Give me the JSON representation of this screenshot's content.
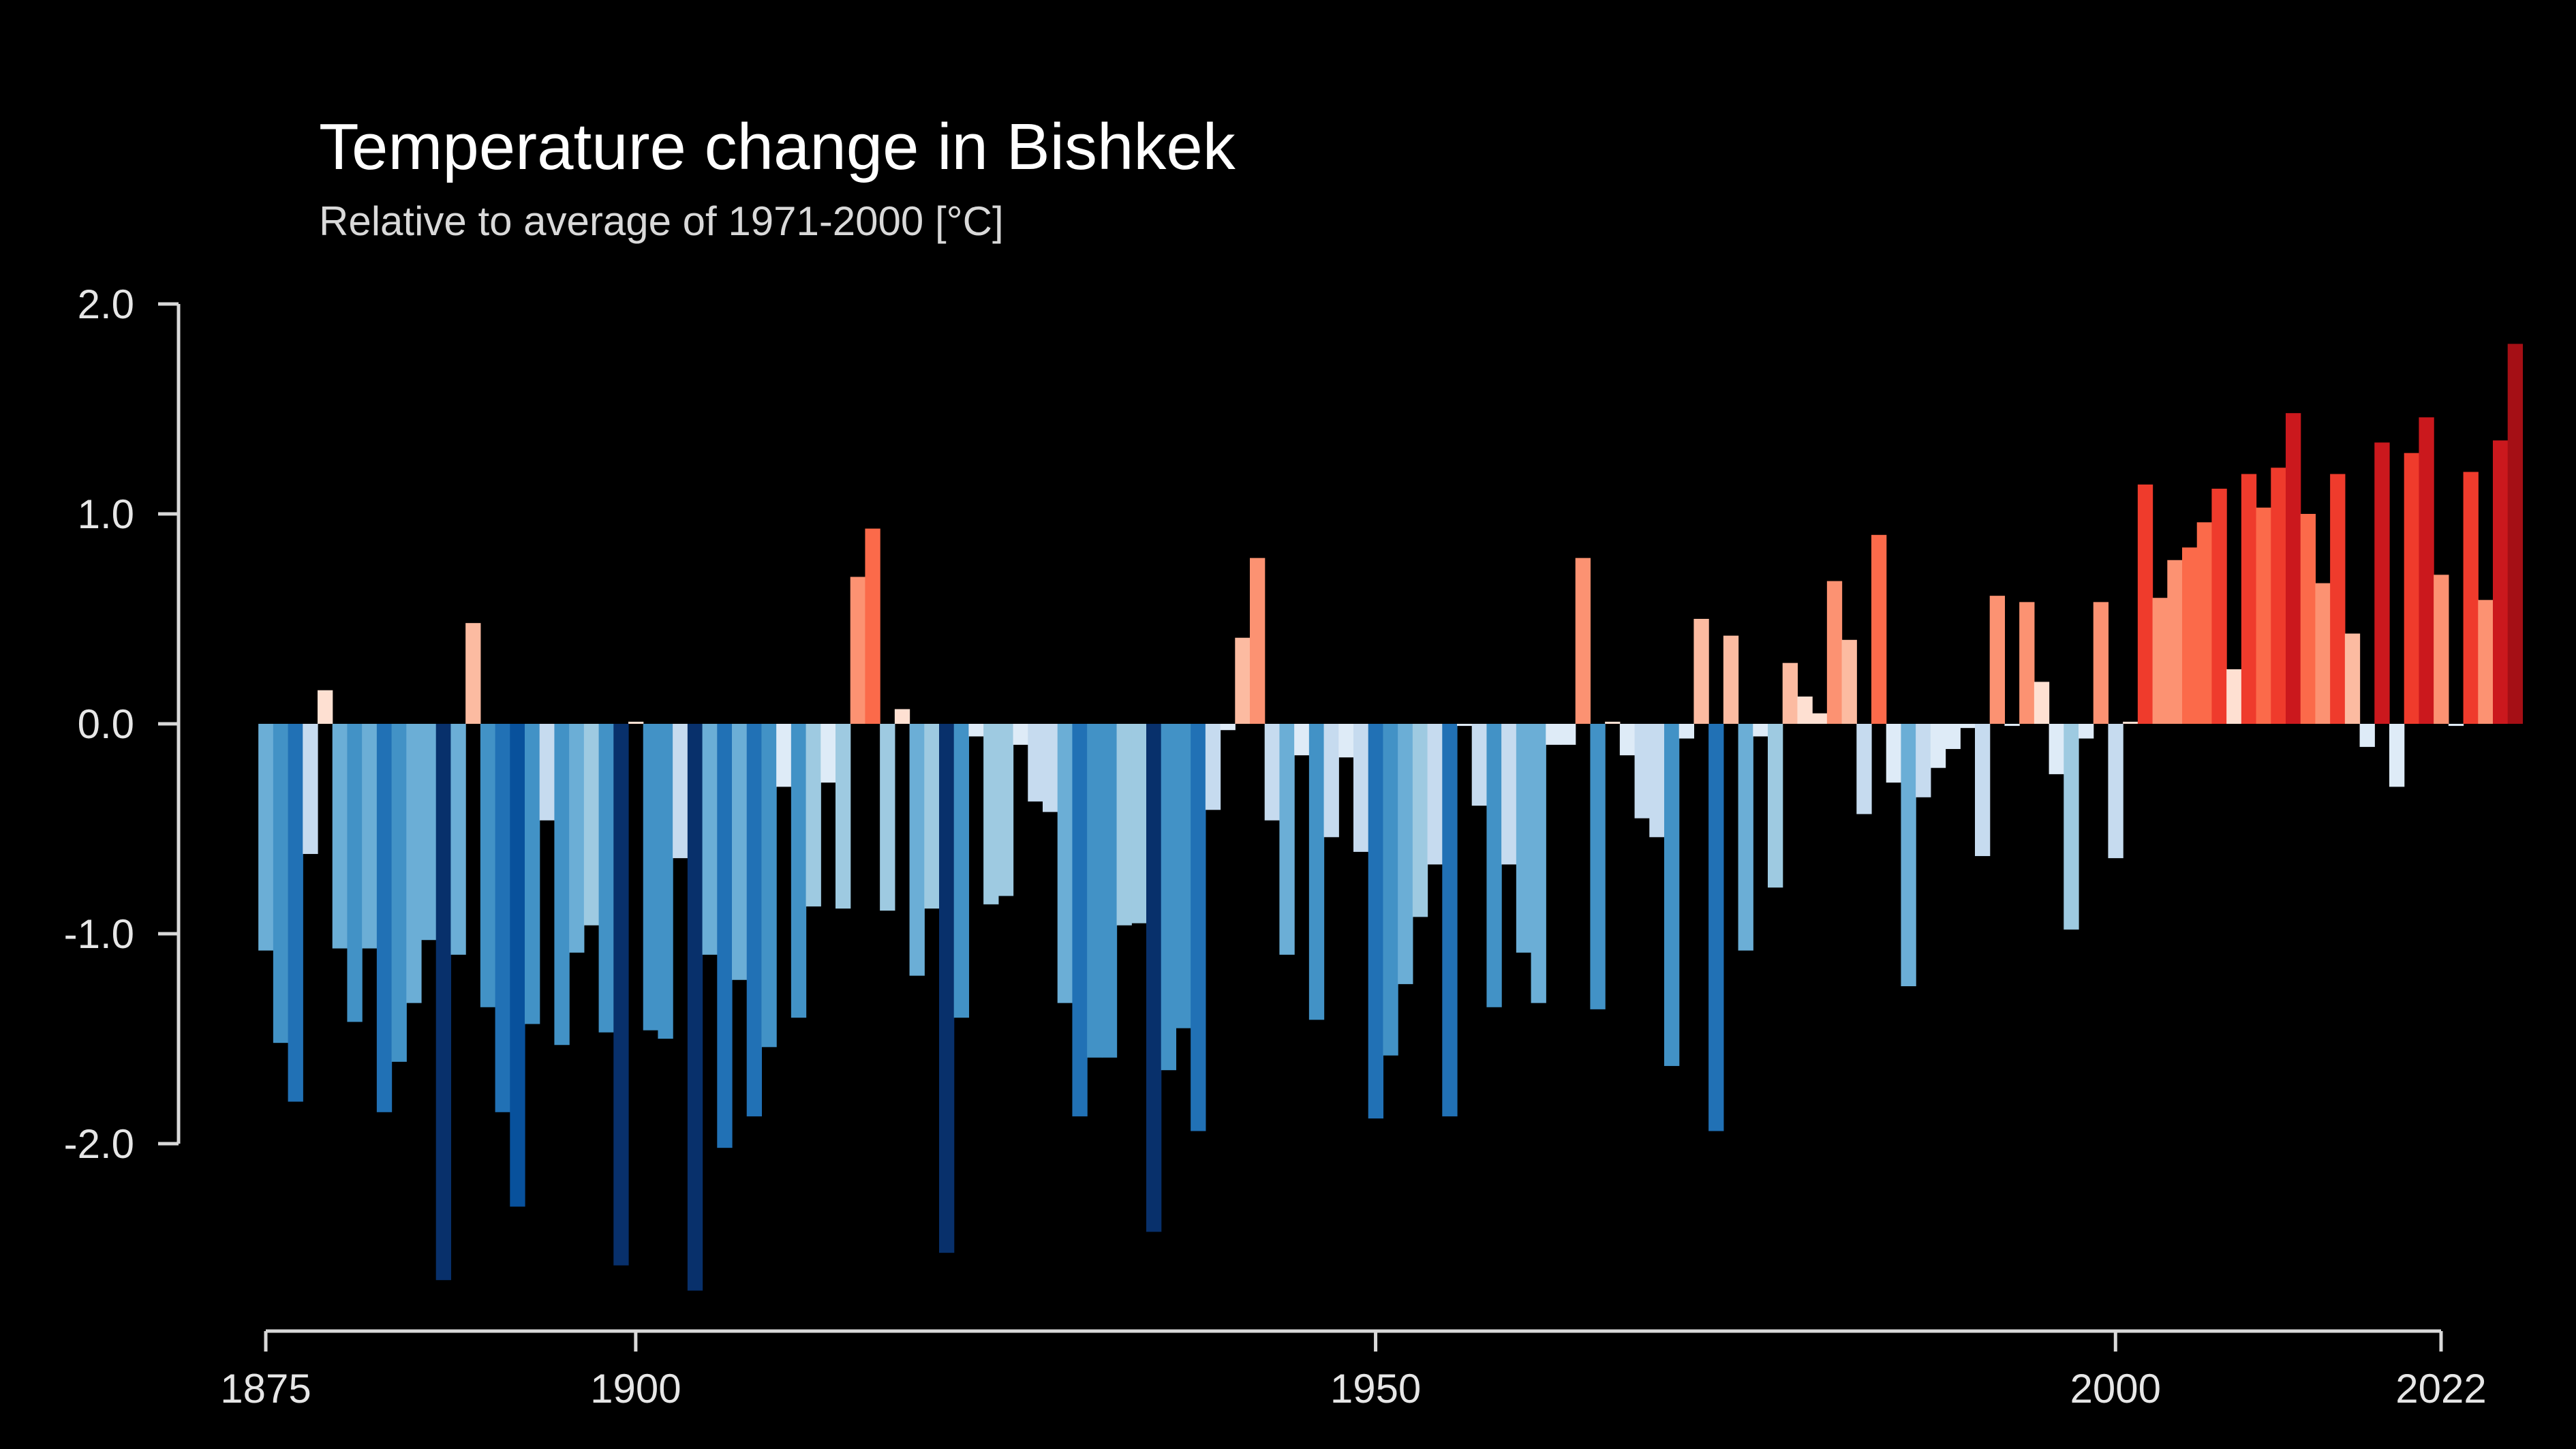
{
  "chart_data": {
    "type": "bar",
    "title": "Temperature change in Bishkek",
    "subtitle": "Relative to average of 1971-2000  [°C]",
    "xlabel": "",
    "ylabel": "",
    "x_start": 1875,
    "x_end": 2022,
    "xlim": [
      1875,
      2022
    ],
    "ylim": [
      -2.7,
      2.0
    ],
    "y_ticks": [
      2.0,
      1.0,
      0.0,
      -1.0,
      -2.0
    ],
    "y_tick_labels": [
      "2.0",
      "1.0",
      "0.0",
      "-1.0",
      "-2.0"
    ],
    "x_ticks": [
      1875,
      1900,
      1950,
      2000,
      2022
    ],
    "x_tick_labels": [
      "1875",
      "1900",
      "1950",
      "2000",
      "2022"
    ],
    "grid": false,
    "color_scale": {
      "negative": [
        "#deebf7",
        "#c6dbef",
        "#9ecae1",
        "#6baed6",
        "#4292c6",
        "#2171b5",
        "#08519c",
        "#08306b"
      ],
      "positive": [
        "#fee0d2",
        "#fcbba1",
        "#fc9272",
        "#fb6a4a",
        "#ef3b2c",
        "#cb181d",
        "#a50f15"
      ]
    },
    "values": [
      -1.08,
      -1.52,
      -1.8,
      -0.62,
      0.16,
      -1.07,
      -1.42,
      -1.07,
      -1.85,
      -1.61,
      -1.33,
      -1.03,
      -2.65,
      -1.1,
      0.48,
      -1.35,
      -1.85,
      -2.3,
      -1.43,
      -0.46,
      -1.53,
      -1.09,
      -0.96,
      -1.47,
      -2.58,
      0.01,
      -1.46,
      -1.5,
      -0.64,
      -2.7,
      -1.1,
      -2.02,
      -1.22,
      -1.87,
      -1.54,
      -0.3,
      -1.4,
      -0.87,
      -0.28,
      -0.88,
      0.7,
      0.93,
      -0.89,
      0.07,
      -1.2,
      -0.88,
      -2.52,
      -1.4,
      -0.06,
      -0.86,
      -0.82,
      -0.1,
      -0.37,
      -0.42,
      -1.33,
      -1.87,
      -1.59,
      -1.59,
      -0.96,
      -0.95,
      -2.42,
      -1.65,
      -1.45,
      -1.94,
      -0.41,
      -0.03,
      0.41,
      0.79,
      -0.46,
      -1.1,
      -0.15,
      -1.41,
      -0.54,
      -0.16,
      -0.61,
      -1.88,
      -1.58,
      -1.24,
      -0.92,
      -0.67,
      -1.87,
      -0.01,
      -0.39,
      -1.35,
      -0.67,
      -1.09,
      -1.33,
      -0.1,
      -0.1,
      0.79,
      -1.36,
      0.01,
      -0.15,
      -0.45,
      -0.54,
      -1.63,
      -0.07,
      0.5,
      -1.94,
      0.42,
      -1.08,
      -0.06,
      -0.78,
      0.29,
      0.13,
      0.05,
      0.68,
      0.4,
      -0.43,
      0.9,
      -0.28,
      -1.25,
      -0.35,
      -0.21,
      -0.12,
      -0.02,
      -0.63,
      0.61,
      -0.01,
      0.58,
      0.2,
      -0.24,
      -0.98,
      -0.07,
      0.58,
      -0.64,
      0.01,
      1.14,
      0.6,
      0.78,
      0.84,
      0.96,
      1.12,
      0.26,
      1.19,
      1.03,
      1.22,
      1.48,
      1.0,
      0.67,
      1.19,
      0.43,
      -0.11,
      1.34,
      -0.3,
      1.29,
      1.46,
      0.71,
      -0.01,
      1.2,
      0.59,
      1.35,
      1.81
    ]
  }
}
